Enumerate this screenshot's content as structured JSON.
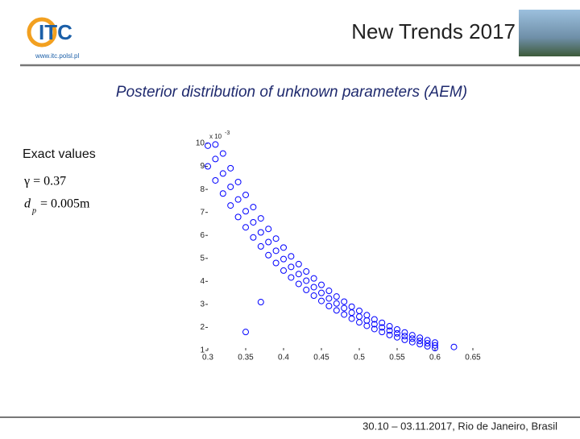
{
  "logo": {
    "text": "ITC",
    "url": "www.itc.polsl.pl"
  },
  "header": "New Trends 2017",
  "title": "Posterior distribution of unknown parameters (AEM)",
  "exact": {
    "heading": "Exact values",
    "gamma": "γ = 0.37",
    "dp_symbol": "d",
    "dp_sub": "p",
    "dp_value": "= 0.005m"
  },
  "footer": "30.10 – 03.11.2017, Rio de Janeiro, Brasil",
  "chart_data": {
    "type": "scatter",
    "y_multiplier": "x 10",
    "y_multiplier_exp": "-3",
    "xlim": [
      0.3,
      0.65
    ],
    "xticks": [
      0.3,
      0.35,
      0.4,
      0.45,
      0.5,
      0.55,
      0.6,
      0.65
    ],
    "ylim": [
      1,
      10
    ],
    "yticks": [
      1,
      2,
      3,
      4,
      5,
      6,
      7,
      8,
      9,
      10
    ],
    "series": [
      {
        "color": "#0000ff",
        "x": [
          0.3,
          0.3,
          0.31,
          0.31,
          0.31,
          0.32,
          0.32,
          0.32,
          0.33,
          0.33,
          0.33,
          0.34,
          0.34,
          0.34,
          0.35,
          0.35,
          0.35,
          0.36,
          0.36,
          0.36,
          0.37,
          0.37,
          0.37,
          0.38,
          0.38,
          0.38,
          0.39,
          0.39,
          0.39,
          0.4,
          0.4,
          0.4,
          0.41,
          0.41,
          0.41,
          0.42,
          0.42,
          0.42,
          0.43,
          0.43,
          0.43,
          0.44,
          0.44,
          0.44,
          0.45,
          0.45,
          0.45,
          0.46,
          0.46,
          0.46,
          0.47,
          0.47,
          0.47,
          0.48,
          0.48,
          0.48,
          0.49,
          0.49,
          0.49,
          0.5,
          0.5,
          0.5,
          0.51,
          0.51,
          0.51,
          0.52,
          0.52,
          0.52,
          0.53,
          0.53,
          0.53,
          0.54,
          0.54,
          0.54,
          0.55,
          0.55,
          0.55,
          0.56,
          0.56,
          0.56,
          0.57,
          0.57,
          0.57,
          0.58,
          0.58,
          0.58,
          0.59,
          0.59,
          0.59,
          0.6,
          0.6,
          0.6,
          0.35,
          0.37,
          0.625
        ],
        "values": [
          9.9,
          9.0,
          9.95,
          9.32,
          8.39,
          9.56,
          8.69,
          7.82,
          8.92,
          8.11,
          7.3,
          8.32,
          7.56,
          6.8,
          7.76,
          7.05,
          6.35,
          7.23,
          6.57,
          5.91,
          6.74,
          6.13,
          5.52,
          6.28,
          5.71,
          5.14,
          5.86,
          5.33,
          4.8,
          5.47,
          4.97,
          4.47,
          5.09,
          4.63,
          4.17,
          4.75,
          4.32,
          3.89,
          4.43,
          4.03,
          3.63,
          4.13,
          3.75,
          3.38,
          3.85,
          3.5,
          3.15,
          3.59,
          3.26,
          2.93,
          3.34,
          3.04,
          2.74,
          3.12,
          2.84,
          2.56,
          2.9,
          2.64,
          2.38,
          2.72,
          2.47,
          2.22,
          2.53,
          2.3,
          2.07,
          2.35,
          2.14,
          1.93,
          2.2,
          2.0,
          1.8,
          2.05,
          1.86,
          1.67,
          1.91,
          1.74,
          1.57,
          1.78,
          1.62,
          1.46,
          1.66,
          1.51,
          1.36,
          1.55,
          1.41,
          1.27,
          1.44,
          1.31,
          1.18,
          1.34,
          1.22,
          1.1,
          1.8,
          3.1,
          1.15
        ]
      }
    ]
  }
}
